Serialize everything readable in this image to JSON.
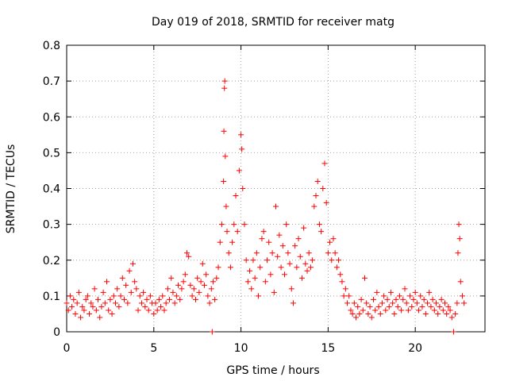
{
  "chart_data": {
    "type": "scatter",
    "title": "Day 019 of 2018, SRMTID for receiver matg",
    "xlabel": "GPS time / hours",
    "ylabel": "SRMTID / TECUs",
    "xlim": [
      0,
      24
    ],
    "ylim": [
      0,
      0.8
    ],
    "xticks": [
      0,
      5,
      10,
      15,
      20
    ],
    "xtick_labels": [
      "0",
      "5",
      "10",
      "15",
      "20"
    ],
    "yticks": [
      0,
      0.1,
      0.2,
      0.3,
      0.4,
      0.5,
      0.6,
      0.7,
      0.8
    ],
    "ytick_labels": [
      "0",
      "0.1",
      "0.2",
      "0.3",
      "0.4",
      "0.5",
      "0.6",
      "0.7",
      "0.8"
    ],
    "grid": true,
    "marker": "plus",
    "color": "#ff0000",
    "series": [
      {
        "name": "SRMTID",
        "points": [
          [
            0.0,
            0.08
          ],
          [
            0.1,
            0.06
          ],
          [
            0.2,
            0.1
          ],
          [
            0.3,
            0.07
          ],
          [
            0.4,
            0.09
          ],
          [
            0.5,
            0.05
          ],
          [
            0.6,
            0.08
          ],
          [
            0.7,
            0.11
          ],
          [
            0.8,
            0.04
          ],
          [
            0.9,
            0.07
          ],
          [
            1.0,
            0.06
          ],
          [
            1.1,
            0.09
          ],
          [
            1.2,
            0.1
          ],
          [
            1.3,
            0.05
          ],
          [
            1.4,
            0.08
          ],
          [
            1.5,
            0.07
          ],
          [
            1.6,
            0.12
          ],
          [
            1.7,
            0.06
          ],
          [
            1.8,
            0.09
          ],
          [
            1.9,
            0.04
          ],
          [
            2.0,
            0.07
          ],
          [
            2.1,
            0.11
          ],
          [
            2.2,
            0.08
          ],
          [
            2.3,
            0.14
          ],
          [
            2.4,
            0.06
          ],
          [
            2.5,
            0.09
          ],
          [
            2.6,
            0.05
          ],
          [
            2.7,
            0.1
          ],
          [
            2.8,
            0.08
          ],
          [
            2.9,
            0.12
          ],
          [
            3.0,
            0.07
          ],
          [
            3.1,
            0.1
          ],
          [
            3.2,
            0.15
          ],
          [
            3.3,
            0.09
          ],
          [
            3.4,
            0.13
          ],
          [
            3.5,
            0.08
          ],
          [
            3.6,
            0.17
          ],
          [
            3.7,
            0.11
          ],
          [
            3.8,
            0.19
          ],
          [
            3.9,
            0.14
          ],
          [
            4.0,
            0.12
          ],
          [
            4.1,
            0.06
          ],
          [
            4.2,
            0.1
          ],
          [
            4.3,
            0.08
          ],
          [
            4.4,
            0.11
          ],
          [
            4.5,
            0.07
          ],
          [
            4.6,
            0.09
          ],
          [
            4.7,
            0.06
          ],
          [
            4.8,
            0.1
          ],
          [
            4.9,
            0.08
          ],
          [
            5.0,
            0.05
          ],
          [
            5.1,
            0.08
          ],
          [
            5.2,
            0.06
          ],
          [
            5.3,
            0.09
          ],
          [
            5.4,
            0.07
          ],
          [
            5.5,
            0.1
          ],
          [
            5.6,
            0.06
          ],
          [
            5.7,
            0.08
          ],
          [
            5.8,
            0.12
          ],
          [
            5.9,
            0.09
          ],
          [
            6.0,
            0.15
          ],
          [
            6.1,
            0.11
          ],
          [
            6.2,
            0.08
          ],
          [
            6.3,
            0.1
          ],
          [
            6.4,
            0.13
          ],
          [
            6.5,
            0.09
          ],
          [
            6.6,
            0.12
          ],
          [
            6.7,
            0.14
          ],
          [
            6.8,
            0.16
          ],
          [
            6.9,
            0.22
          ],
          [
            7.0,
            0.21
          ],
          [
            7.1,
            0.13
          ],
          [
            7.2,
            0.1
          ],
          [
            7.3,
            0.12
          ],
          [
            7.4,
            0.09
          ],
          [
            7.5,
            0.15
          ],
          [
            7.6,
            0.11
          ],
          [
            7.7,
            0.14
          ],
          [
            7.8,
            0.19
          ],
          [
            7.9,
            0.13
          ],
          [
            8.0,
            0.16
          ],
          [
            8.1,
            0.1
          ],
          [
            8.2,
            0.08
          ],
          [
            8.3,
            0.12
          ],
          [
            8.35,
            0.0
          ],
          [
            8.4,
            0.14
          ],
          [
            8.5,
            0.09
          ],
          [
            8.6,
            0.15
          ],
          [
            8.7,
            0.18
          ],
          [
            8.8,
            0.25
          ],
          [
            8.9,
            0.3
          ],
          [
            9.0,
            0.42
          ],
          [
            9.02,
            0.56
          ],
          [
            9.05,
            0.68
          ],
          [
            9.07,
            0.7
          ],
          [
            9.1,
            0.49
          ],
          [
            9.15,
            0.35
          ],
          [
            9.2,
            0.28
          ],
          [
            9.3,
            0.22
          ],
          [
            9.4,
            0.18
          ],
          [
            9.5,
            0.25
          ],
          [
            9.6,
            0.3
          ],
          [
            9.7,
            0.38
          ],
          [
            9.8,
            0.28
          ],
          [
            9.9,
            0.45
          ],
          [
            10.0,
            0.55
          ],
          [
            10.05,
            0.51
          ],
          [
            10.1,
            0.4
          ],
          [
            10.2,
            0.3
          ],
          [
            10.3,
            0.2
          ],
          [
            10.4,
            0.14
          ],
          [
            10.5,
            0.17
          ],
          [
            10.6,
            0.12
          ],
          [
            10.7,
            0.2
          ],
          [
            10.8,
            0.15
          ],
          [
            10.9,
            0.22
          ],
          [
            11.0,
            0.1
          ],
          [
            11.1,
            0.18
          ],
          [
            11.2,
            0.26
          ],
          [
            11.3,
            0.28
          ],
          [
            11.4,
            0.14
          ],
          [
            11.5,
            0.2
          ],
          [
            11.6,
            0.25
          ],
          [
            11.7,
            0.16
          ],
          [
            11.8,
            0.22
          ],
          [
            11.9,
            0.11
          ],
          [
            12.0,
            0.35
          ],
          [
            12.1,
            0.21
          ],
          [
            12.2,
            0.27
          ],
          [
            12.3,
            0.18
          ],
          [
            12.4,
            0.24
          ],
          [
            12.5,
            0.16
          ],
          [
            12.6,
            0.3
          ],
          [
            12.7,
            0.22
          ],
          [
            12.8,
            0.19
          ],
          [
            12.9,
            0.12
          ],
          [
            13.0,
            0.08
          ],
          [
            13.1,
            0.24
          ],
          [
            13.2,
            0.18
          ],
          [
            13.3,
            0.26
          ],
          [
            13.4,
            0.21
          ],
          [
            13.5,
            0.15
          ],
          [
            13.6,
            0.29
          ],
          [
            13.7,
            0.19
          ],
          [
            13.8,
            0.17
          ],
          [
            13.9,
            0.22
          ],
          [
            14.0,
            0.18
          ],
          [
            14.1,
            0.2
          ],
          [
            14.2,
            0.35
          ],
          [
            14.3,
            0.38
          ],
          [
            14.4,
            0.42
          ],
          [
            14.5,
            0.3
          ],
          [
            14.6,
            0.28
          ],
          [
            14.7,
            0.4
          ],
          [
            14.8,
            0.47
          ],
          [
            14.9,
            0.36
          ],
          [
            15.0,
            0.22
          ],
          [
            15.1,
            0.25
          ],
          [
            15.2,
            0.2
          ],
          [
            15.3,
            0.26
          ],
          [
            15.4,
            0.22
          ],
          [
            15.5,
            0.18
          ],
          [
            15.6,
            0.2
          ],
          [
            15.7,
            0.16
          ],
          [
            15.8,
            0.14
          ],
          [
            15.9,
            0.1
          ],
          [
            16.0,
            0.12
          ],
          [
            16.1,
            0.08
          ],
          [
            16.2,
            0.1
          ],
          [
            16.3,
            0.06
          ],
          [
            16.4,
            0.05
          ],
          [
            16.5,
            0.08
          ],
          [
            16.6,
            0.04
          ],
          [
            16.7,
            0.07
          ],
          [
            16.8,
            0.05
          ],
          [
            16.9,
            0.09
          ],
          [
            17.0,
            0.06
          ],
          [
            17.1,
            0.15
          ],
          [
            17.2,
            0.08
          ],
          [
            17.3,
            0.05
          ],
          [
            17.4,
            0.07
          ],
          [
            17.5,
            0.04
          ],
          [
            17.6,
            0.09
          ],
          [
            17.7,
            0.06
          ],
          [
            17.8,
            0.11
          ],
          [
            17.9,
            0.07
          ],
          [
            18.0,
            0.05
          ],
          [
            18.1,
            0.08
          ],
          [
            18.2,
            0.1
          ],
          [
            18.3,
            0.06
          ],
          [
            18.4,
            0.09
          ],
          [
            18.5,
            0.07
          ],
          [
            18.6,
            0.11
          ],
          [
            18.7,
            0.08
          ],
          [
            18.8,
            0.05
          ],
          [
            18.9,
            0.09
          ],
          [
            19.0,
            0.07
          ],
          [
            19.1,
            0.1
          ],
          [
            19.2,
            0.06
          ],
          [
            19.3,
            0.09
          ],
          [
            19.4,
            0.12
          ],
          [
            19.5,
            0.08
          ],
          [
            19.6,
            0.06
          ],
          [
            19.7,
            0.1
          ],
          [
            19.8,
            0.07
          ],
          [
            19.9,
            0.09
          ],
          [
            20.0,
            0.11
          ],
          [
            20.1,
            0.08
          ],
          [
            20.2,
            0.06
          ],
          [
            20.3,
            0.1
          ],
          [
            20.4,
            0.07
          ],
          [
            20.5,
            0.09
          ],
          [
            20.6,
            0.05
          ],
          [
            20.7,
            0.08
          ],
          [
            20.8,
            0.11
          ],
          [
            20.9,
            0.07
          ],
          [
            21.0,
            0.09
          ],
          [
            21.1,
            0.06
          ],
          [
            21.2,
            0.08
          ],
          [
            21.3,
            0.05
          ],
          [
            21.4,
            0.07
          ],
          [
            21.5,
            0.09
          ],
          [
            21.6,
            0.06
          ],
          [
            21.7,
            0.08
          ],
          [
            21.8,
            0.05
          ],
          [
            21.9,
            0.07
          ],
          [
            22.0,
            0.06
          ],
          [
            22.1,
            0.04
          ],
          [
            22.2,
            0.0
          ],
          [
            22.3,
            0.05
          ],
          [
            22.4,
            0.08
          ],
          [
            22.45,
            0.22
          ],
          [
            22.5,
            0.3
          ],
          [
            22.55,
            0.26
          ],
          [
            22.6,
            0.14
          ],
          [
            22.7,
            0.1
          ],
          [
            22.8,
            0.08
          ]
        ]
      }
    ]
  }
}
